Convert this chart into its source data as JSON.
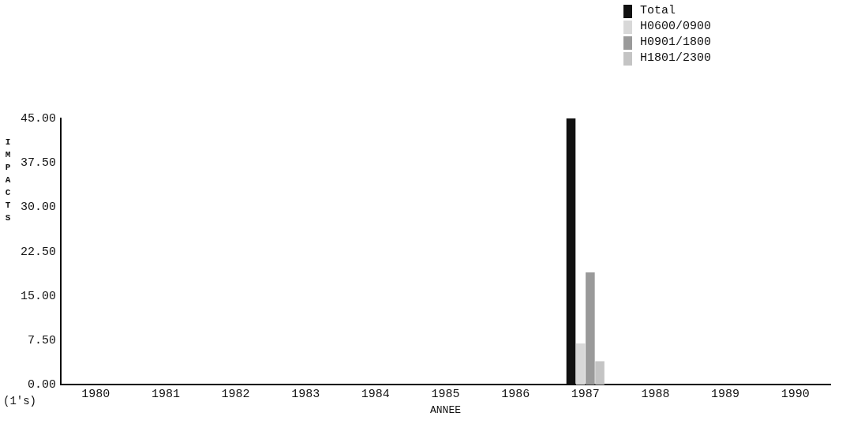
{
  "chart_data": {
    "type": "bar",
    "xlabel": "ANNEE",
    "ylabel": "IMPACTS",
    "categories": [
      "1980",
      "1981",
      "1982",
      "1983",
      "1984",
      "1985",
      "1986",
      "1987",
      "1988",
      "1989",
      "1990"
    ],
    "series": [
      {
        "name": "Total",
        "color": "#111111",
        "values": [
          0,
          0,
          0,
          0,
          0,
          0,
          0,
          45,
          0,
          0,
          0
        ]
      },
      {
        "name": "H0600/0900",
        "color": "#d8d8d8",
        "values": [
          0,
          0,
          0,
          0,
          0,
          0,
          0,
          7,
          0,
          0,
          0
        ]
      },
      {
        "name": "H0901/1800",
        "color": "#9a9a9a",
        "values": [
          0,
          0,
          0,
          0,
          0,
          0,
          0,
          19,
          0,
          0,
          0
        ]
      },
      {
        "name": "H1801/2300",
        "color": "#c4c4c4",
        "values": [
          0,
          0,
          0,
          0,
          0,
          0,
          0,
          4,
          0,
          0,
          0
        ]
      }
    ],
    "ylim": [
      0,
      45
    ],
    "yticks": [
      {
        "value": 0,
        "label": "0.00"
      },
      {
        "value": 7.5,
        "label": "7.50"
      },
      {
        "value": 15,
        "label": "15.00"
      },
      {
        "value": 22.5,
        "label": "22.50"
      },
      {
        "value": 30,
        "label": "30.00"
      },
      {
        "value": 37.5,
        "label": "37.50"
      },
      {
        "value": 45,
        "label": "45.00"
      }
    ],
    "annotations": [
      "(1's)"
    ],
    "grid": false,
    "legend": "top right"
  }
}
